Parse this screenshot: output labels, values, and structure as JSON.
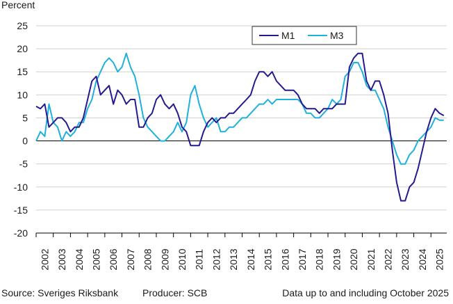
{
  "chart_data": {
    "type": "line",
    "y_label": "Percent",
    "x": [
      2002,
      2002.25,
      2002.5,
      2002.75,
      2003,
      2003.25,
      2003.5,
      2003.75,
      2004,
      2004.25,
      2004.5,
      2004.75,
      2005,
      2005.25,
      2005.5,
      2005.75,
      2006,
      2006.25,
      2006.5,
      2006.75,
      2007,
      2007.25,
      2007.5,
      2007.75,
      2008,
      2008.25,
      2008.5,
      2008.75,
      2009,
      2009.25,
      2009.5,
      2009.75,
      2010,
      2010.25,
      2010.5,
      2010.75,
      2011,
      2011.25,
      2011.5,
      2011.75,
      2012,
      2012.25,
      2012.5,
      2012.75,
      2013,
      2013.25,
      2013.5,
      2013.75,
      2014,
      2014.25,
      2014.5,
      2014.75,
      2015,
      2015.25,
      2015.5,
      2015.75,
      2016,
      2016.25,
      2016.5,
      2016.75,
      2017,
      2017.25,
      2017.5,
      2017.75,
      2018,
      2018.25,
      2018.5,
      2018.75,
      2019,
      2019.25,
      2019.5,
      2019.75,
      2020,
      2020.25,
      2020.5,
      2020.75,
      2021,
      2021.25,
      2021.5,
      2021.75,
      2022,
      2022.25,
      2022.5,
      2022.75,
      2023,
      2023.25,
      2023.5,
      2023.75,
      2024,
      2024.25,
      2024.5,
      2024.75,
      2025,
      2025.25,
      2025.5,
      2025.75
    ],
    "series": [
      {
        "name": "M1",
        "color": "#231a8f",
        "values": [
          7.5,
          7,
          8,
          3,
          4,
          5,
          5,
          4,
          2,
          3,
          3,
          5,
          9,
          13,
          14,
          10,
          11,
          12,
          8,
          11,
          10,
          8,
          9,
          9,
          3,
          3,
          5,
          6,
          9,
          10,
          8,
          7,
          8,
          6,
          3,
          2,
          -1,
          -1,
          -1,
          2,
          4,
          5,
          4,
          5,
          5,
          6,
          6,
          7,
          8,
          9,
          10,
          13,
          15,
          15,
          14,
          15,
          13,
          12,
          11,
          11,
          11,
          10,
          8,
          7,
          7,
          7,
          6,
          7,
          7,
          7,
          8,
          8,
          8,
          16,
          18,
          19,
          19,
          13,
          11,
          13,
          13,
          10,
          6,
          -2,
          -9,
          -13,
          -13,
          -10,
          -9,
          -6,
          -2,
          2,
          5,
          7,
          6,
          5.5
        ]
      },
      {
        "name": "M3",
        "color": "#1eb1dc",
        "values": [
          0,
          2,
          1,
          8,
          4,
          3,
          0,
          2,
          1,
          2,
          4,
          4,
          7,
          9,
          13,
          15,
          17,
          18,
          17,
          15,
          16,
          19,
          16,
          14,
          10,
          5,
          3,
          2,
          1,
          0,
          0,
          1,
          2,
          4,
          2,
          4,
          10,
          12,
          8,
          5,
          3,
          4,
          5,
          2,
          2,
          3,
          3,
          4,
          5,
          5,
          6,
          7,
          8,
          8,
          9,
          8,
          9,
          9,
          9,
          9,
          9,
          9,
          8,
          6,
          6,
          5,
          5,
          6,
          7,
          9,
          8,
          9,
          14,
          15,
          17,
          17,
          15,
          12,
          11,
          11,
          9,
          7,
          3,
          0,
          -3,
          -5,
          -5,
          -3,
          -2,
          0,
          1,
          2,
          3,
          5,
          4.5,
          4.5
        ]
      }
    ],
    "xlim": [
      2002,
      2025.92
    ],
    "xticks": [
      2002,
      2003,
      2004,
      2005,
      2006,
      2007,
      2008,
      2009,
      2010,
      2011,
      2012,
      2013,
      2014,
      2015,
      2016,
      2017,
      2018,
      2019,
      2020,
      2021,
      2022,
      2023,
      2024,
      2025
    ],
    "ylim": [
      -20,
      25
    ],
    "yticks": [
      -20,
      -15,
      -10,
      -5,
      0,
      5,
      10,
      15,
      20,
      25
    ],
    "grid": true,
    "legend": "top-right",
    "footer": {
      "source": "Source: Sveriges Riksbank",
      "producer": "Producer: SCB",
      "note": "Data up to and including October 2025"
    }
  }
}
